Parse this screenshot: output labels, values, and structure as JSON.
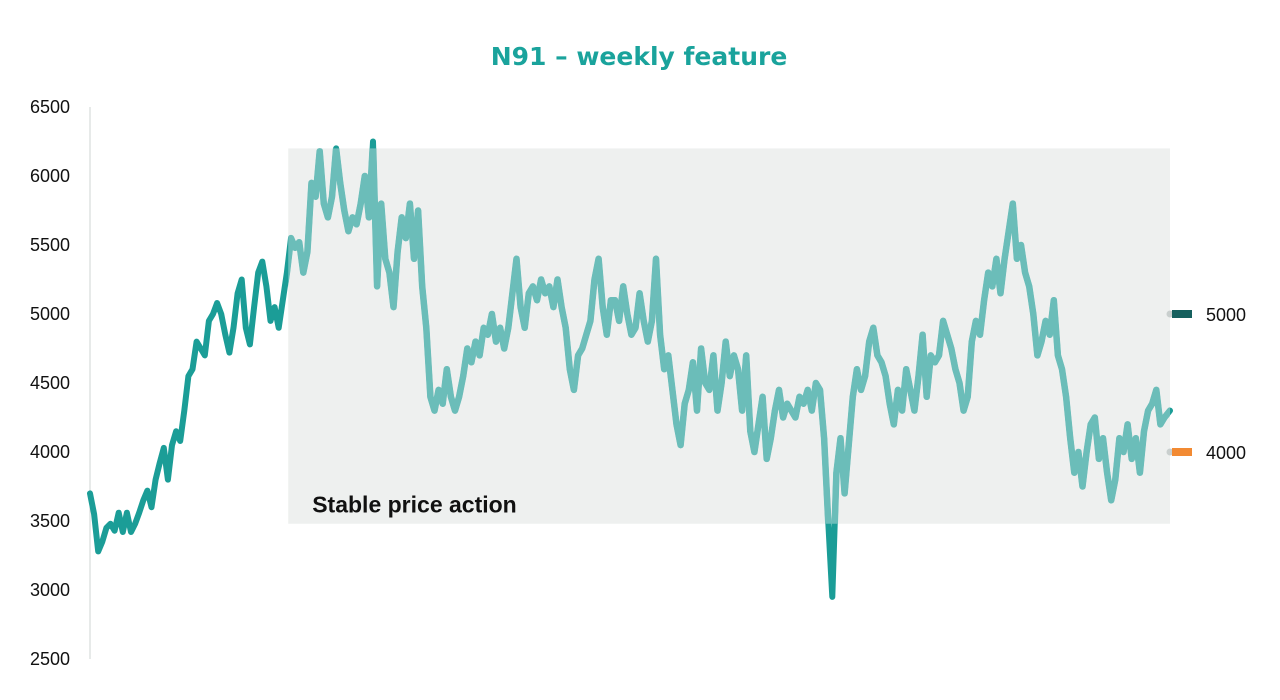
{
  "chart_data": {
    "type": "line",
    "title": "N91 – weekly feature",
    "xlabel": "",
    "ylabel": "",
    "ylim": [
      2500,
      6500
    ],
    "yticks": [
      2500,
      3000,
      3500,
      4000,
      4500,
      5000,
      5500,
      6000,
      6500
    ],
    "grid": false,
    "x_range": [
      0,
      790
    ],
    "series": [
      {
        "values": [
          [
            0,
            3700
          ],
          [
            3,
            3550
          ],
          [
            6,
            3280
          ],
          [
            9,
            3350
          ],
          [
            12,
            3450
          ],
          [
            15,
            3480
          ],
          [
            18,
            3430
          ],
          [
            21,
            3560
          ],
          [
            24,
            3420
          ],
          [
            27,
            3560
          ],
          [
            30,
            3420
          ],
          [
            33,
            3480
          ],
          [
            36,
            3560
          ],
          [
            39,
            3650
          ],
          [
            42,
            3720
          ],
          [
            45,
            3600
          ],
          [
            48,
            3800
          ],
          [
            51,
            3920
          ],
          [
            54,
            4030
          ],
          [
            57,
            3800
          ],
          [
            60,
            4050
          ],
          [
            63,
            4150
          ],
          [
            66,
            4080
          ],
          [
            69,
            4300
          ],
          [
            72,
            4550
          ],
          [
            75,
            4600
          ],
          [
            78,
            4800
          ],
          [
            81,
            4750
          ],
          [
            84,
            4700
          ],
          [
            87,
            4950
          ],
          [
            90,
            5000
          ],
          [
            93,
            5080
          ],
          [
            96,
            5000
          ],
          [
            99,
            4850
          ],
          [
            102,
            4720
          ],
          [
            105,
            4900
          ],
          [
            108,
            5150
          ],
          [
            111,
            5250
          ],
          [
            114,
            4900
          ],
          [
            117,
            4780
          ],
          [
            120,
            5050
          ],
          [
            123,
            5300
          ],
          [
            126,
            5380
          ],
          [
            129,
            5200
          ],
          [
            132,
            4950
          ],
          [
            135,
            5050
          ],
          [
            138,
            4900
          ],
          [
            141,
            5100
          ],
          [
            144,
            5300
          ],
          [
            147,
            5550
          ],
          [
            150,
            5480
          ],
          [
            153,
            5520
          ],
          [
            156,
            5300
          ],
          [
            159,
            5450
          ],
          [
            162,
            5950
          ],
          [
            165,
            5850
          ],
          [
            168,
            6180
          ],
          [
            171,
            5800
          ],
          [
            174,
            5700
          ],
          [
            177,
            5850
          ],
          [
            180,
            6200
          ],
          [
            183,
            5950
          ],
          [
            186,
            5750
          ],
          [
            189,
            5600
          ],
          [
            192,
            5700
          ],
          [
            195,
            5650
          ],
          [
            198,
            5800
          ],
          [
            201,
            6000
          ],
          [
            204,
            5700
          ],
          [
            207,
            6250
          ],
          [
            210,
            5200
          ],
          [
            213,
            5800
          ],
          [
            216,
            5400
          ],
          [
            219,
            5300
          ],
          [
            222,
            5050
          ],
          [
            225,
            5450
          ],
          [
            228,
            5700
          ],
          [
            231,
            5550
          ],
          [
            234,
            5800
          ],
          [
            237,
            5400
          ],
          [
            240,
            5750
          ],
          [
            243,
            5200
          ],
          [
            246,
            4900
          ],
          [
            249,
            4400
          ],
          [
            252,
            4300
          ],
          [
            255,
            4450
          ],
          [
            258,
            4350
          ],
          [
            261,
            4600
          ],
          [
            264,
            4400
          ],
          [
            267,
            4300
          ],
          [
            270,
            4400
          ],
          [
            273,
            4550
          ],
          [
            276,
            4750
          ],
          [
            279,
            4650
          ],
          [
            282,
            4800
          ],
          [
            285,
            4700
          ],
          [
            288,
            4900
          ],
          [
            291,
            4850
          ],
          [
            294,
            5000
          ],
          [
            297,
            4800
          ],
          [
            300,
            4900
          ],
          [
            303,
            4750
          ],
          [
            306,
            4900
          ],
          [
            309,
            5150
          ],
          [
            312,
            5400
          ],
          [
            315,
            5050
          ],
          [
            318,
            4900
          ],
          [
            321,
            5150
          ],
          [
            324,
            5200
          ],
          [
            327,
            5100
          ],
          [
            330,
            5250
          ],
          [
            333,
            5150
          ],
          [
            336,
            5200
          ],
          [
            339,
            5050
          ],
          [
            342,
            5250
          ],
          [
            345,
            5050
          ],
          [
            348,
            4900
          ],
          [
            351,
            4600
          ],
          [
            354,
            4450
          ],
          [
            357,
            4700
          ],
          [
            360,
            4750
          ],
          [
            363,
            4850
          ],
          [
            366,
            4950
          ],
          [
            369,
            5250
          ],
          [
            372,
            5400
          ],
          [
            375,
            5050
          ],
          [
            378,
            4850
          ],
          [
            381,
            5100
          ],
          [
            384,
            5100
          ],
          [
            387,
            4950
          ],
          [
            390,
            5200
          ],
          [
            393,
            5000
          ],
          [
            396,
            4850
          ],
          [
            399,
            4900
          ],
          [
            402,
            5150
          ],
          [
            405,
            4950
          ],
          [
            408,
            4800
          ],
          [
            411,
            4950
          ],
          [
            414,
            5400
          ],
          [
            417,
            4850
          ],
          [
            420,
            4600
          ],
          [
            423,
            4700
          ],
          [
            426,
            4450
          ],
          [
            429,
            4200
          ],
          [
            432,
            4050
          ],
          [
            435,
            4350
          ],
          [
            438,
            4450
          ],
          [
            441,
            4650
          ],
          [
            444,
            4300
          ],
          [
            447,
            4750
          ],
          [
            450,
            4500
          ],
          [
            453,
            4450
          ],
          [
            456,
            4700
          ],
          [
            459,
            4300
          ],
          [
            462,
            4500
          ],
          [
            465,
            4800
          ],
          [
            468,
            4550
          ],
          [
            471,
            4700
          ],
          [
            474,
            4600
          ],
          [
            477,
            4300
          ],
          [
            480,
            4700
          ],
          [
            483,
            4150
          ],
          [
            486,
            4000
          ],
          [
            489,
            4200
          ],
          [
            492,
            4400
          ],
          [
            495,
            3950
          ],
          [
            498,
            4100
          ],
          [
            501,
            4300
          ],
          [
            504,
            4450
          ],
          [
            507,
            4250
          ],
          [
            510,
            4350
          ],
          [
            513,
            4300
          ],
          [
            516,
            4250
          ],
          [
            519,
            4400
          ],
          [
            522,
            4350
          ],
          [
            525,
            4450
          ],
          [
            528,
            4300
          ],
          [
            531,
            4500
          ],
          [
            534,
            4450
          ],
          [
            537,
            4100
          ],
          [
            540,
            3500
          ],
          [
            543,
            2950
          ],
          [
            546,
            3850
          ],
          [
            549,
            4100
          ],
          [
            552,
            3700
          ],
          [
            555,
            4050
          ],
          [
            558,
            4400
          ],
          [
            561,
            4600
          ],
          [
            564,
            4450
          ],
          [
            567,
            4550
          ],
          [
            570,
            4800
          ],
          [
            573,
            4900
          ],
          [
            576,
            4700
          ],
          [
            579,
            4650
          ],
          [
            582,
            4550
          ],
          [
            585,
            4350
          ],
          [
            588,
            4200
          ],
          [
            591,
            4450
          ],
          [
            594,
            4300
          ],
          [
            597,
            4600
          ],
          [
            600,
            4450
          ],
          [
            603,
            4300
          ],
          [
            606,
            4550
          ],
          [
            609,
            4850
          ],
          [
            612,
            4400
          ],
          [
            615,
            4700
          ],
          [
            618,
            4650
          ],
          [
            621,
            4700
          ],
          [
            624,
            4950
          ],
          [
            627,
            4850
          ],
          [
            630,
            4750
          ],
          [
            633,
            4600
          ],
          [
            636,
            4500
          ],
          [
            639,
            4300
          ],
          [
            642,
            4400
          ],
          [
            645,
            4800
          ],
          [
            648,
            4950
          ],
          [
            651,
            4850
          ],
          [
            654,
            5100
          ],
          [
            657,
            5300
          ],
          [
            660,
            5200
          ],
          [
            663,
            5400
          ],
          [
            666,
            5150
          ],
          [
            669,
            5400
          ],
          [
            672,
            5600
          ],
          [
            675,
            5800
          ],
          [
            678,
            5400
          ],
          [
            681,
            5500
          ],
          [
            684,
            5300
          ],
          [
            687,
            5200
          ],
          [
            690,
            5000
          ],
          [
            693,
            4700
          ],
          [
            696,
            4800
          ],
          [
            699,
            4950
          ],
          [
            702,
            4850
          ],
          [
            705,
            5100
          ],
          [
            708,
            4700
          ],
          [
            711,
            4600
          ],
          [
            714,
            4400
          ],
          [
            717,
            4100
          ],
          [
            720,
            3850
          ],
          [
            723,
            4000
          ],
          [
            726,
            3750
          ],
          [
            729,
            4000
          ],
          [
            732,
            4200
          ],
          [
            735,
            4250
          ],
          [
            738,
            3950
          ],
          [
            741,
            4100
          ],
          [
            744,
            3850
          ],
          [
            747,
            3650
          ],
          [
            750,
            3800
          ],
          [
            753,
            4100
          ],
          [
            756,
            4000
          ],
          [
            759,
            4200
          ],
          [
            762,
            3950
          ],
          [
            765,
            4100
          ],
          [
            768,
            3850
          ],
          [
            771,
            4150
          ],
          [
            774,
            4300
          ],
          [
            777,
            4350
          ],
          [
            780,
            4450
          ],
          [
            783,
            4200
          ],
          [
            786,
            4250
          ],
          [
            790,
            4300
          ]
        ]
      }
    ],
    "highlight_band": {
      "x_start": 145,
      "x_end": 790,
      "y_low": 3480,
      "y_high": 6200,
      "label": "Stable price action"
    },
    "right_markers": [
      {
        "value": 5000,
        "label": "5000",
        "color": "#16605e"
      },
      {
        "value": 4000,
        "label": "4000",
        "color": "#f28a33"
      }
    ],
    "colors": {
      "title": "#1aa39c",
      "line_outside_band": "#1b9d97",
      "line_inside_band": "#6bbdb9",
      "band_fill": "#eef0ef",
      "axis": "#cfd4d3"
    }
  }
}
